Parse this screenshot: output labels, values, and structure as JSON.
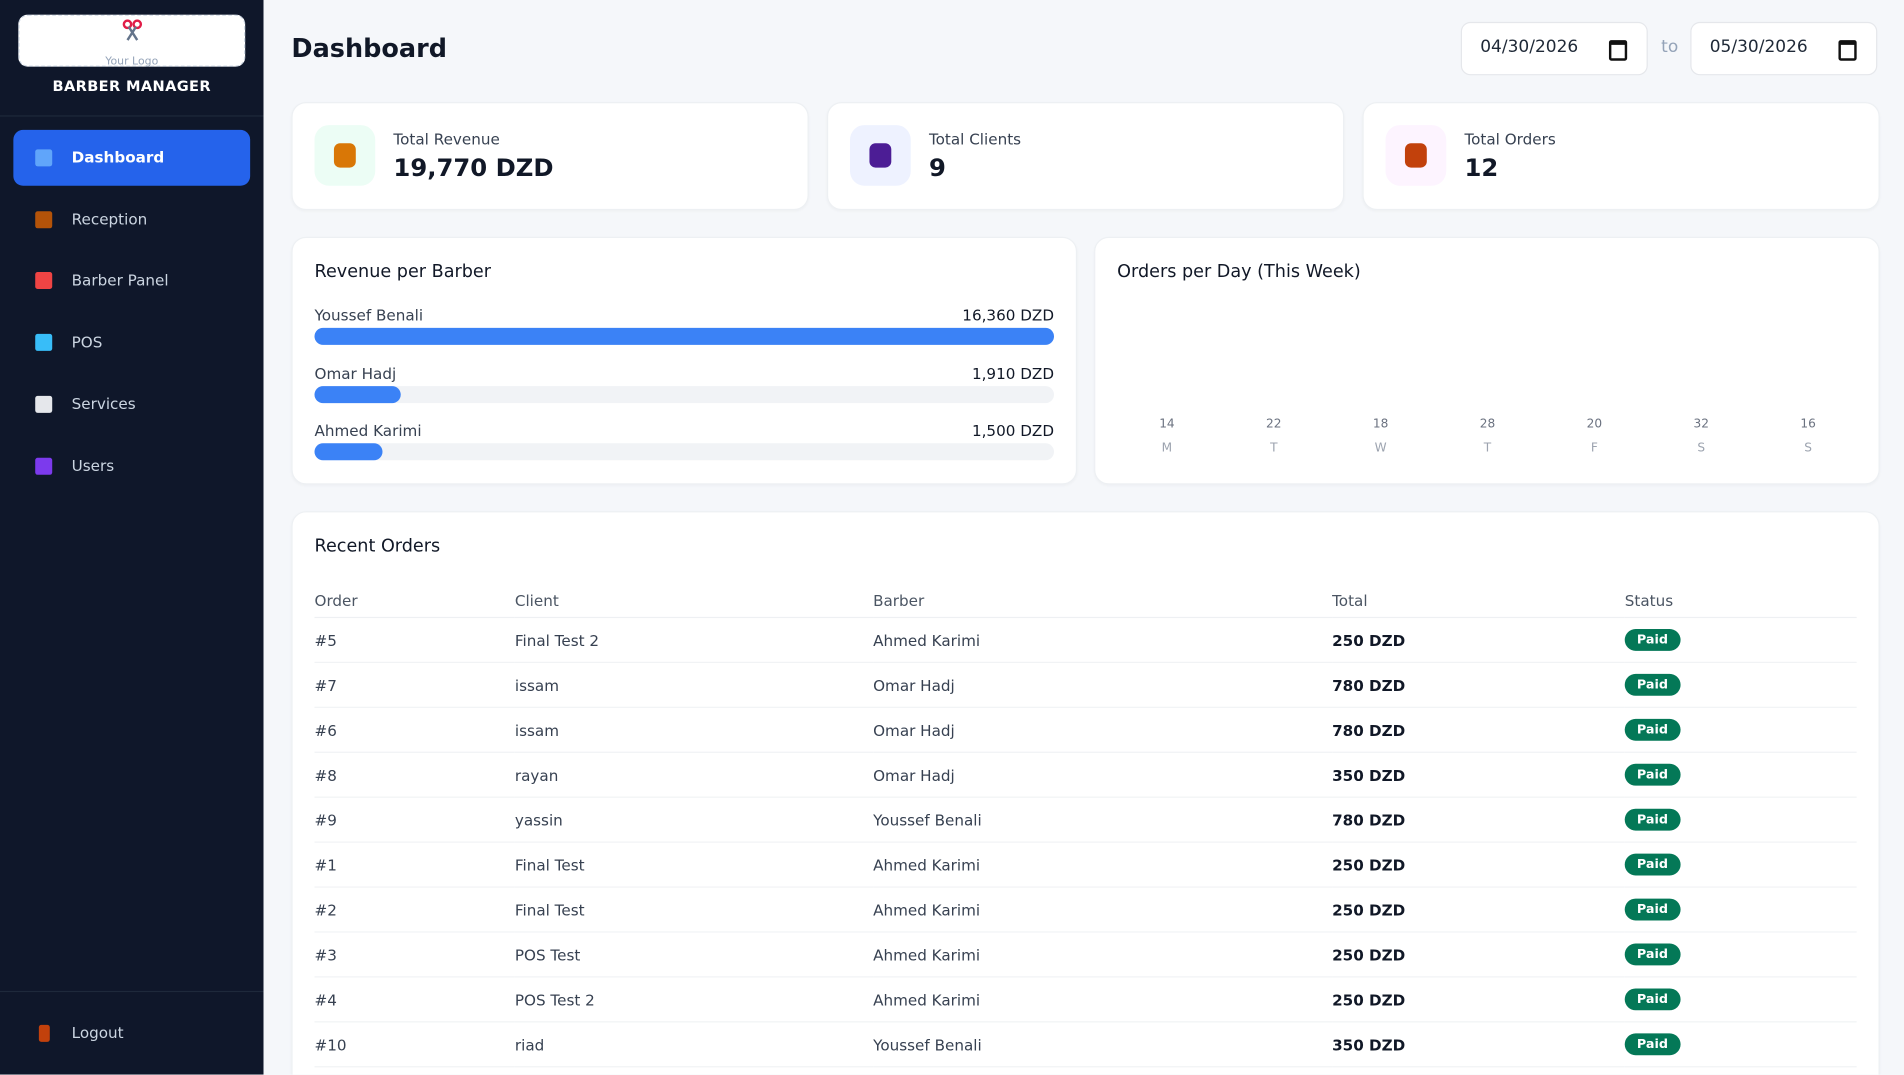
{
  "sidebar": {
    "logo_text": "Your Logo",
    "brand": "BARBER MANAGER",
    "nav": [
      "Dashboard",
      "Reception",
      "Barber Panel",
      "POS",
      "Services",
      "Users"
    ],
    "logout": "Logout"
  },
  "header": {
    "title": "Dashboard",
    "date_from": "04/30/2026",
    "date_separator": "to",
    "date_to": "05/30/2026"
  },
  "stats": [
    {
      "label": "Total Revenue",
      "value": "19,770 DZD"
    },
    {
      "label": "Total Clients",
      "value": 9
    },
    {
      "label": "Total Orders",
      "value": 12
    }
  ],
  "revenue_per_barber": {
    "title": "Revenue per Barber",
    "names": [
      "Youssef Benali",
      "Omar Hadj",
      "Ahmed Karimi"
    ],
    "values": [
      16360,
      1910,
      1500
    ],
    "value_labels": [
      "16,360 DZD",
      "1,910 DZD",
      "1,500 DZD"
    ]
  },
  "orders_per_day": {
    "title": "Orders per Day (This Week)",
    "days": [
      "M",
      "T",
      "W",
      "T",
      "F",
      "S",
      "S"
    ],
    "values": [
      14,
      22,
      18,
      28,
      20,
      32,
      16
    ]
  },
  "recent_orders": {
    "title": "Recent Orders",
    "columns": [
      "Order",
      "Client",
      "Barber",
      "Total",
      "Status"
    ],
    "rows": [
      [
        "#5",
        "Final Test 2",
        "Ahmed Karimi",
        "250 DZD",
        "Paid"
      ],
      [
        "#7",
        "issam",
        "Omar Hadj",
        "780 DZD",
        "Paid"
      ],
      [
        "#6",
        "issam",
        "Omar Hadj",
        "780 DZD",
        "Paid"
      ],
      [
        "#8",
        "rayan",
        "Omar Hadj",
        "350 DZD",
        "Paid"
      ],
      [
        "#9",
        "yassin",
        "Youssef Benali",
        "780 DZD",
        "Paid"
      ],
      [
        "#1",
        "Final Test",
        "Ahmed Karimi",
        "250 DZD",
        "Paid"
      ],
      [
        "#2",
        "Final Test",
        "Ahmed Karimi",
        "250 DZD",
        "Paid"
      ],
      [
        "#3",
        "POS Test",
        "Ahmed Karimi",
        "250 DZD",
        "Paid"
      ],
      [
        "#4",
        "POS Test 2",
        "Ahmed Karimi",
        "250 DZD",
        "Paid"
      ],
      [
        "#10",
        "riad",
        "Youssef Benali",
        "350 DZD",
        "Paid"
      ]
    ]
  }
}
